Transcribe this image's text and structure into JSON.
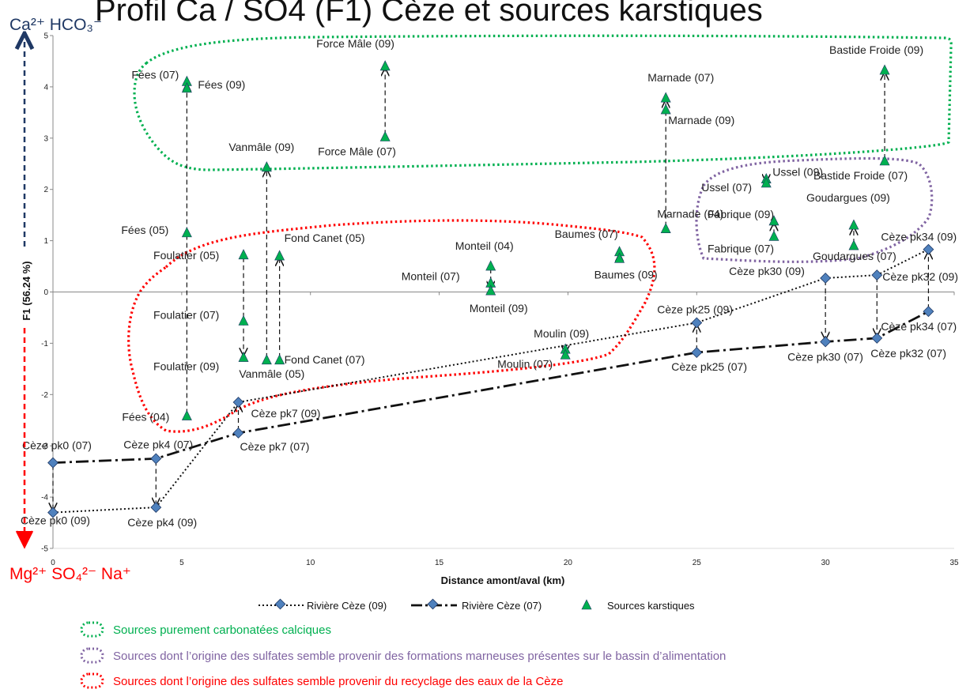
{
  "chart_data": {
    "type": "scatter",
    "title": "Profil Ca / SO4 (F1) Cèze et sources karstiques",
    "xlabel": "Distance amont/aval (km)",
    "ylabel": "F1 (56.24 %)",
    "xlim": [
      0,
      35
    ],
    "ylim": [
      -5,
      5
    ],
    "xticks": [
      0,
      5,
      10,
      15,
      20,
      25,
      30,
      35
    ],
    "yticks": [
      -5,
      -4,
      -3,
      -2,
      -1,
      0,
      1,
      2,
      3,
      4,
      5
    ],
    "top_ions": "Ca²⁺ HCO₃⁻",
    "bottom_ions": "Mg²⁺ SO₄²⁻ Na⁺",
    "colors": {
      "river": "#4f81bd",
      "source": "#00b050",
      "zone_carbonate": "#00b050",
      "zone_marl": "#8064a2",
      "zone_recycling": "#ff0000",
      "arrow_top": "#1f3864",
      "arrow_bottom": "#ff0000"
    },
    "series": [
      {
        "name": "Rivière Cèze (09)",
        "points": [
          {
            "label": "Cèze pk0 (09)",
            "x": 0,
            "y": -4.3
          },
          {
            "label": "Cèze pk4 (09)",
            "x": 4,
            "y": -4.2
          },
          {
            "label": "Cèze pk7 (09)",
            "x": 7.2,
            "y": -2.15
          },
          {
            "label": "Cèze pk25 (09)",
            "x": 25,
            "y": -0.6
          },
          {
            "label": "Cèze pk30 (09)",
            "x": 30,
            "y": 0.27
          },
          {
            "label": "Cèze pk32 (09)",
            "x": 32,
            "y": 0.33
          },
          {
            "label": "Cèze pk34 (09)",
            "x": 34,
            "y": 0.83
          }
        ]
      },
      {
        "name": "Rivière Cèze (07)",
        "points": [
          {
            "label": "Cèze pk0 (07)",
            "x": 0,
            "y": -3.33
          },
          {
            "label": "Cèze pk4 (07)",
            "x": 4,
            "y": -3.25
          },
          {
            "label": "Cèze pk7 (07)",
            "x": 7.2,
            "y": -2.75
          },
          {
            "label": "Cèze pk25 (07)",
            "x": 25,
            "y": -1.18
          },
          {
            "label": "Cèze pk30 (07)",
            "x": 30,
            "y": -0.97
          },
          {
            "label": "Cèze pk32 (07)",
            "x": 32,
            "y": -0.9
          },
          {
            "label": "Cèze pk34 (07)",
            "x": 34,
            "y": -0.38
          }
        ]
      },
      {
        "name": "Sources karstiques",
        "points": [
          {
            "label": "Fées (07)",
            "x": 5.2,
            "y": 4.1
          },
          {
            "label": "Fées (09)",
            "x": 5.2,
            "y": 3.97
          },
          {
            "label": "Fées (05)",
            "x": 5.2,
            "y": 1.15
          },
          {
            "label": "Fées (04)",
            "x": 5.2,
            "y": -2.42
          },
          {
            "label": "Foulatier (05)",
            "x": 7.4,
            "y": 0.72
          },
          {
            "label": "Foulatier (07)",
            "x": 7.4,
            "y": -0.57
          },
          {
            "label": "Foulatier (09)",
            "x": 7.4,
            "y": -1.28
          },
          {
            "label": "Vanmâle (09)",
            "x": 8.3,
            "y": 2.43
          },
          {
            "label": "Vanmâle (05)",
            "x": 8.3,
            "y": -1.33
          },
          {
            "label": "Fond Canet (05)",
            "x": 8.8,
            "y": 0.7
          },
          {
            "label": "Fond Canet (07)",
            "x": 8.8,
            "y": -1.33
          },
          {
            "label": "Force Mâle (09)",
            "x": 12.9,
            "y": 4.4
          },
          {
            "label": "Force Mâle (07)",
            "x": 12.9,
            "y": 3.02
          },
          {
            "label": "Monteil (04)",
            "x": 17,
            "y": 0.5
          },
          {
            "label": "Monteil (07)",
            "x": 17,
            "y": 0.17
          },
          {
            "label": "Monteil (09)",
            "x": 17,
            "y": 0.02
          },
          {
            "label": "Moulin (09)",
            "x": 19.9,
            "y": -1.12
          },
          {
            "label": "Moulin (07)",
            "x": 19.9,
            "y": -1.23
          },
          {
            "label": "Baumes (07)",
            "x": 22,
            "y": 0.78
          },
          {
            "label": "Baumes (09)",
            "x": 22,
            "y": 0.65
          },
          {
            "label": "Marnade (07)",
            "x": 23.8,
            "y": 3.78
          },
          {
            "label": "Marnade (09)",
            "x": 23.8,
            "y": 3.55
          },
          {
            "label": "Marnade (04)",
            "x": 23.8,
            "y": 1.23
          },
          {
            "label": "Ussel (09)",
            "x": 27.7,
            "y": 2.2
          },
          {
            "label": "Ussel (07)",
            "x": 27.7,
            "y": 2.12
          },
          {
            "label": "Fabrique (09)",
            "x": 28,
            "y": 1.38
          },
          {
            "label": "Fabrique (07)",
            "x": 28,
            "y": 1.08
          },
          {
            "label": "Goudargues (09)",
            "x": 31.1,
            "y": 1.3
          },
          {
            "label": "Goudargues (07)",
            "x": 31.1,
            "y": 0.9
          },
          {
            "label": "Bastide Froide (09)",
            "x": 32.3,
            "y": 4.32
          },
          {
            "label": "Bastide Froide (07)",
            "x": 32.3,
            "y": 2.55
          }
        ]
      }
    ],
    "arrows": [
      {
        "from": "Fées (04)",
        "to": "Fées (07)"
      },
      {
        "from": "Foulatier (05)",
        "to": "Foulatier (09)"
      },
      {
        "from": "Vanmâle (05)",
        "to": "Vanmâle (09)"
      },
      {
        "from": "Fond Canet (07)",
        "to": "Fond Canet (05)"
      },
      {
        "from": "Force Mâle (07)",
        "to": "Force Mâle (09)"
      },
      {
        "from": "Monteil (04)",
        "to": "Monteil (09)"
      },
      {
        "from": "Moulin (09)",
        "to": "Moulin (07)"
      },
      {
        "from": "Baumes (09)",
        "to": "Baumes (07)"
      },
      {
        "from": "Marnade (04)",
        "to": "Marnade (07)"
      },
      {
        "from": "Ussel (07)",
        "to": "Ussel (09)"
      },
      {
        "from": "Fabrique (07)",
        "to": "Fabrique (09)"
      },
      {
        "from": "Goudargues (07)",
        "to": "Goudargues (09)"
      },
      {
        "from": "Bastide Froide (07)",
        "to": "Bastide Froide (09)"
      },
      {
        "from": "Cèze pk0 (07)",
        "to": "Cèze pk0 (09)"
      },
      {
        "from": "Cèze pk4 (07)",
        "to": "Cèze pk4 (09)"
      },
      {
        "from": "Cèze pk7 (07)",
        "to": "Cèze pk7 (09)"
      },
      {
        "from": "Cèze pk25 (07)",
        "to": "Cèze pk25 (09)"
      },
      {
        "from": "Cèze pk30 (09)",
        "to": "Cèze pk30 (07)"
      },
      {
        "from": "Cèze pk32 (09)",
        "to": "Cèze pk32 (07)"
      },
      {
        "from": "Cèze pk34 (07)",
        "to": "Cèze pk34 (09)"
      }
    ],
    "zones": [
      {
        "name": "carbonate",
        "label": "Sources purement carbonatées calciques"
      },
      {
        "name": "marl",
        "label": "Sources dont l’origine des sulfates semble provenir des formations marneuses présentes sur le bassin d’alimentation"
      },
      {
        "name": "recycling",
        "label": "Sources dont l’origine des sulfates semble provenir du recyclage des eaux de la Cèze"
      }
    ],
    "legend": [
      "Rivière Cèze (09)",
      "Rivière Cèze (07)",
      "Sources karstiques"
    ],
    "grid": false,
    "legend_position": "bottom"
  }
}
